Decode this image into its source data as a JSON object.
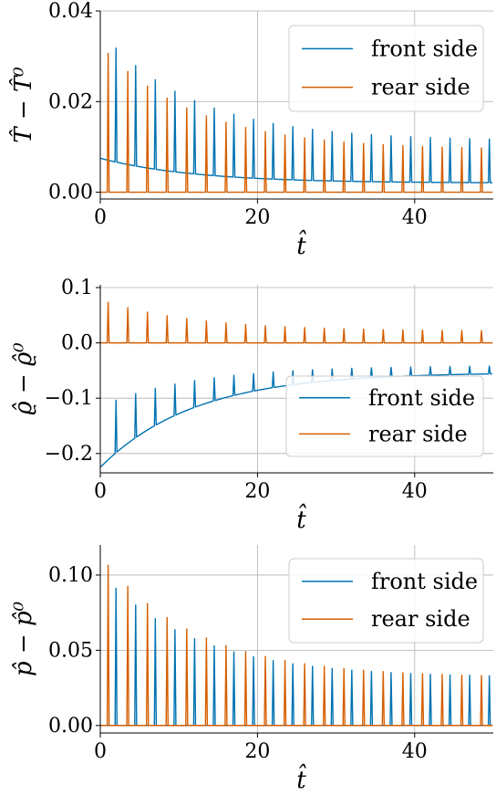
{
  "chart_data": [
    {
      "type": "line",
      "ylabel": "T̂ − T̂⁰",
      "xlabel": "t̂",
      "xlim": [
        0,
        50
      ],
      "ylim": [
        -0.0015,
        0.04
      ],
      "xticks": [
        "0",
        "20",
        "40"
      ],
      "yticks": [
        "0.00",
        "0.02",
        "0.04"
      ],
      "ytick_values": [
        0.0,
        0.02,
        0.04
      ],
      "grid": true,
      "legend": "top-right",
      "series": [
        {
          "name": "front side",
          "color": "#0072b2",
          "baseline_start": 0.0075,
          "baseline_end": 0.0021,
          "spike_start": 0.0355,
          "spike_end": 0.0117,
          "first_spike_t": 2.0,
          "period": 2.5
        },
        {
          "name": "rear side",
          "color": "#d55e00",
          "baseline_start": 0.0,
          "baseline_end": 0.0,
          "spike_start": 0.0325,
          "spike_end": 0.0097,
          "first_spike_t": 1.0,
          "period": 2.5
        }
      ]
    },
    {
      "type": "line",
      "ylabel": "ϱ̂ − ϱ̂⁰",
      "xlabel": "t̂",
      "xlim": [
        0,
        50
      ],
      "ylim": [
        -0.235,
        0.105
      ],
      "xticks": [
        "0",
        "20",
        "40"
      ],
      "yticks": [
        "−0.2",
        "−0.1",
        "0.0",
        "0.1"
      ],
      "ytick_values": [
        -0.2,
        -0.1,
        0.0,
        0.1
      ],
      "grid": true,
      "legend": "lower-right",
      "series": [
        {
          "name": "front side",
          "color": "#0072b2",
          "baseline_start": -0.225,
          "baseline_end": -0.056,
          "spike_start": -0.115,
          "spike_end": -0.042,
          "first_spike_t": 2.0,
          "period": 2.5
        },
        {
          "name": "rear side",
          "color": "#d55e00",
          "baseline_start": 0.0,
          "baseline_end": 0.0,
          "spike_start": 0.078,
          "spike_end": 0.022,
          "first_spike_t": 1.0,
          "period": 2.5
        }
      ]
    },
    {
      "type": "line",
      "ylabel": "p̂ − p̂⁰",
      "xlabel": "t̂",
      "xlim": [
        0,
        50
      ],
      "ylim": [
        -0.005,
        0.12
      ],
      "xticks": [
        "0",
        "20",
        "40"
      ],
      "yticks": [
        "0.00",
        "0.05",
        "0.10"
      ],
      "ytick_values": [
        0.0,
        0.05,
        0.1
      ],
      "grid": true,
      "legend": "top-right",
      "series": [
        {
          "name": "front side",
          "color": "#0072b2",
          "baseline_start": 0.0,
          "baseline_end": 0.0,
          "spike_start": 0.102,
          "spike_end": 0.033,
          "first_spike_t": 2.0,
          "period": 2.5
        },
        {
          "name": "rear side",
          "color": "#d55e00",
          "baseline_start": 0.0,
          "baseline_end": 0.0,
          "spike_start": 0.113,
          "spike_end": 0.033,
          "first_spike_t": 1.0,
          "period": 2.5
        }
      ]
    }
  ]
}
